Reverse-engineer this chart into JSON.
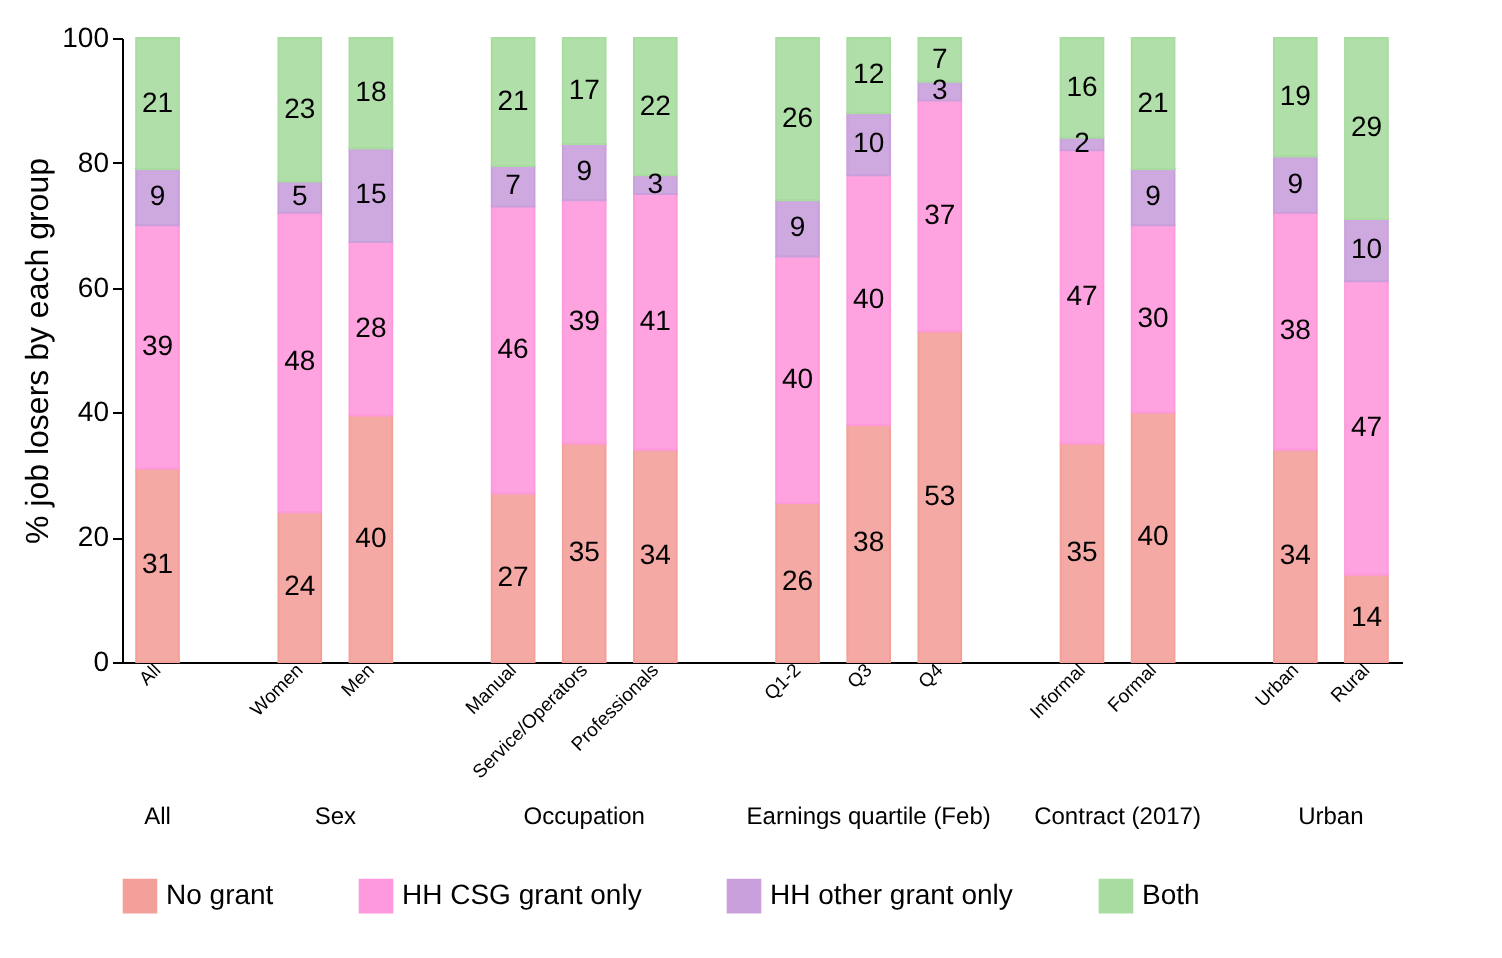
{
  "chart_data": {
    "type": "bar",
    "stacked": true,
    "ylabel": "% job losers by each group",
    "categories": [
      "All",
      null,
      "Women",
      "Men",
      null,
      "Manual",
      "Service/Operators",
      "Professionals",
      null,
      "Q1-2",
      "Q3",
      "Q4",
      null,
      "Informal",
      "Formal",
      null,
      "Urban",
      "Rural"
    ],
    "series": [
      {
        "name": "No grant",
        "color": "#f4a09a",
        "values": [
          31,
          null,
          24,
          39.5,
          null,
          27,
          35,
          34,
          null,
          25.5,
          38,
          53,
          null,
          35,
          40,
          null,
          34,
          14
        ],
        "value_labels": [
          "31",
          null,
          "24",
          "40",
          null,
          "27",
          "35",
          "34",
          null,
          "26",
          "38",
          "53",
          null,
          "35",
          "40",
          null,
          "34",
          "14"
        ]
      },
      {
        "name": "HH CSG grant only",
        "color": "#ff99dd",
        "values": [
          39,
          null,
          48,
          27.8,
          null,
          46,
          39,
          41,
          null,
          39.5,
          40,
          37,
          null,
          47,
          30,
          null,
          38,
          47
        ],
        "value_labels": [
          "39",
          null,
          "48",
          "28",
          null,
          "46",
          "39",
          "41",
          null,
          "40",
          "40",
          "37",
          null,
          "47",
          "30",
          null,
          "38",
          "47"
        ]
      },
      {
        "name": "HH other grant only",
        "color": "#c9a0dc",
        "values": [
          9,
          null,
          5,
          15,
          null,
          6.5,
          9,
          3,
          null,
          9,
          10,
          3,
          null,
          2,
          9,
          null,
          9,
          10
        ],
        "value_labels": [
          "9",
          null,
          "5",
          "15",
          null,
          "7",
          "9",
          "3",
          null,
          "9",
          "10",
          "3",
          null,
          "2",
          "9",
          null,
          "9",
          "10"
        ]
      },
      {
        "name": "Both",
        "color": "#a8dca0",
        "values": [
          21,
          null,
          23,
          17.7,
          null,
          20.5,
          17,
          22,
          null,
          26,
          12,
          7,
          null,
          16,
          21,
          null,
          19,
          29
        ],
        "value_labels": [
          "21",
          null,
          "23",
          "18",
          null,
          "21",
          "17",
          "22",
          null,
          "26",
          "12",
          "7",
          null,
          "16",
          "21",
          null,
          "19",
          "29"
        ]
      }
    ],
    "ylim": [
      0,
      100
    ],
    "yticks": [
      0,
      20,
      40,
      60,
      80,
      100
    ],
    "grid": false,
    "legend": "bottom",
    "annotations": [
      "All",
      "Sex",
      "Occupation",
      "Earnings quartile (Feb)",
      "Contract (2017)",
      "Urban"
    ]
  }
}
